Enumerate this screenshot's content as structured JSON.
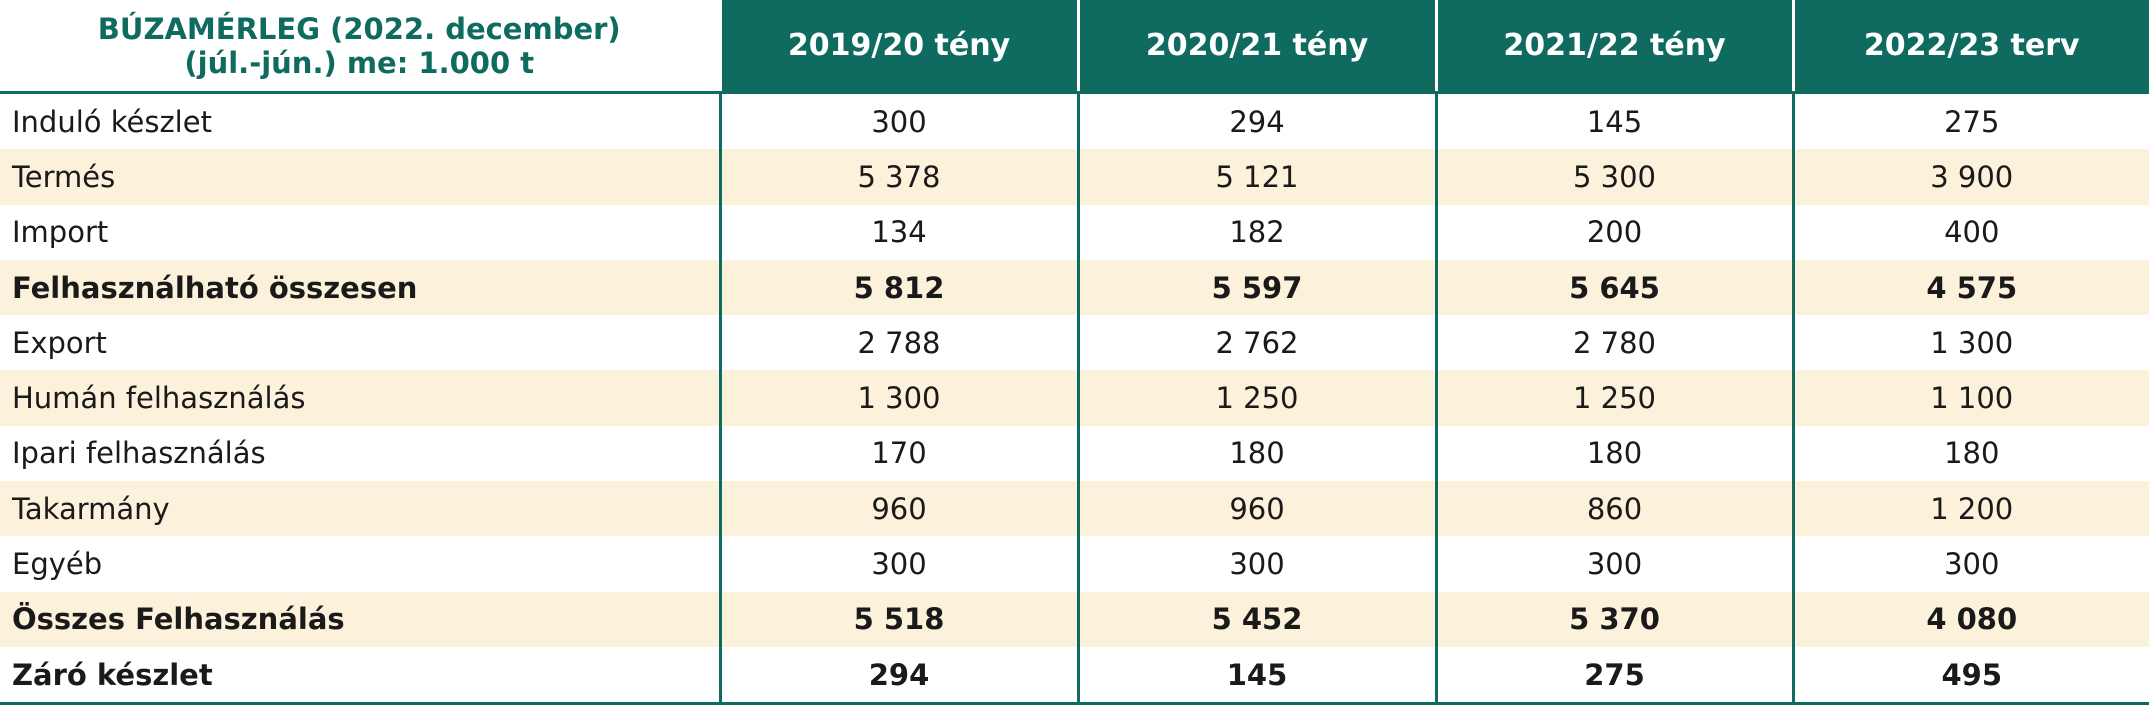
{
  "table": {
    "title_line1": "BÚZAMÉRLEG (2022. december)",
    "title_line2": "(júl.-jún.) me: 1.000 t",
    "columns": [
      "2019/20 tény",
      "2020/21 tény",
      "2021/22 tény",
      "2022/23 terv"
    ],
    "rows": [
      {
        "label": "Induló készlet",
        "bold": false,
        "shaded": false,
        "values": [
          "300",
          "294",
          "145",
          "275"
        ]
      },
      {
        "label": "Termés",
        "bold": false,
        "shaded": true,
        "values": [
          "5 378",
          "5 121",
          "5 300",
          "3 900"
        ]
      },
      {
        "label": "Import",
        "bold": false,
        "shaded": false,
        "values": [
          "134",
          "182",
          "200",
          "400"
        ]
      },
      {
        "label": "Felhasználható összesen",
        "bold": true,
        "shaded": true,
        "values": [
          "5 812",
          "5 597",
          "5 645",
          "4 575"
        ]
      },
      {
        "label": "Export",
        "bold": false,
        "shaded": false,
        "values": [
          "2 788",
          "2 762",
          "2 780",
          "1 300"
        ]
      },
      {
        "label": "Humán felhasználás",
        "bold": false,
        "shaded": true,
        "values": [
          "1 300",
          "1 250",
          "1 250",
          "1 100"
        ]
      },
      {
        "label": "Ipari felhasználás",
        "bold": false,
        "shaded": false,
        "values": [
          "170",
          "180",
          "180",
          "180"
        ]
      },
      {
        "label": "Takarmány",
        "bold": false,
        "shaded": true,
        "values": [
          "960",
          "960",
          "860",
          "1 200"
        ]
      },
      {
        "label": "Egyéb",
        "bold": false,
        "shaded": false,
        "values": [
          "300",
          "300",
          "300",
          "300"
        ]
      },
      {
        "label": "Összes Felhasználás",
        "bold": true,
        "shaded": true,
        "values": [
          "5 518",
          "5 452",
          "5 370",
          "4 080"
        ]
      },
      {
        "label": "Záró készlet",
        "bold": true,
        "shaded": false,
        "values": [
          "294",
          "145",
          "275",
          "495"
        ]
      }
    ]
  },
  "colors": {
    "header_bg": "#0f6b60",
    "header_text": "#ffffff",
    "title_text": "#0f6b60",
    "shade_row": "#fcf1db"
  }
}
